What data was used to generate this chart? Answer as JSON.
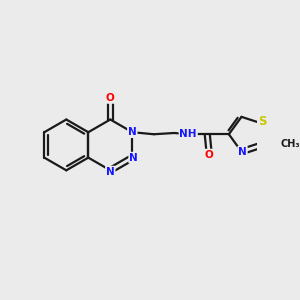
{
  "background_color": "#ebebeb",
  "bond_color": "#1a1a1a",
  "atom_colors": {
    "N": "#1414ff",
    "O": "#ff0000",
    "S": "#c8c800",
    "H": "#555555",
    "C": "#1a1a1a"
  },
  "figsize": [
    3.0,
    3.0
  ],
  "dpi": 100,
  "lw": 1.6,
  "fs": 7.5
}
